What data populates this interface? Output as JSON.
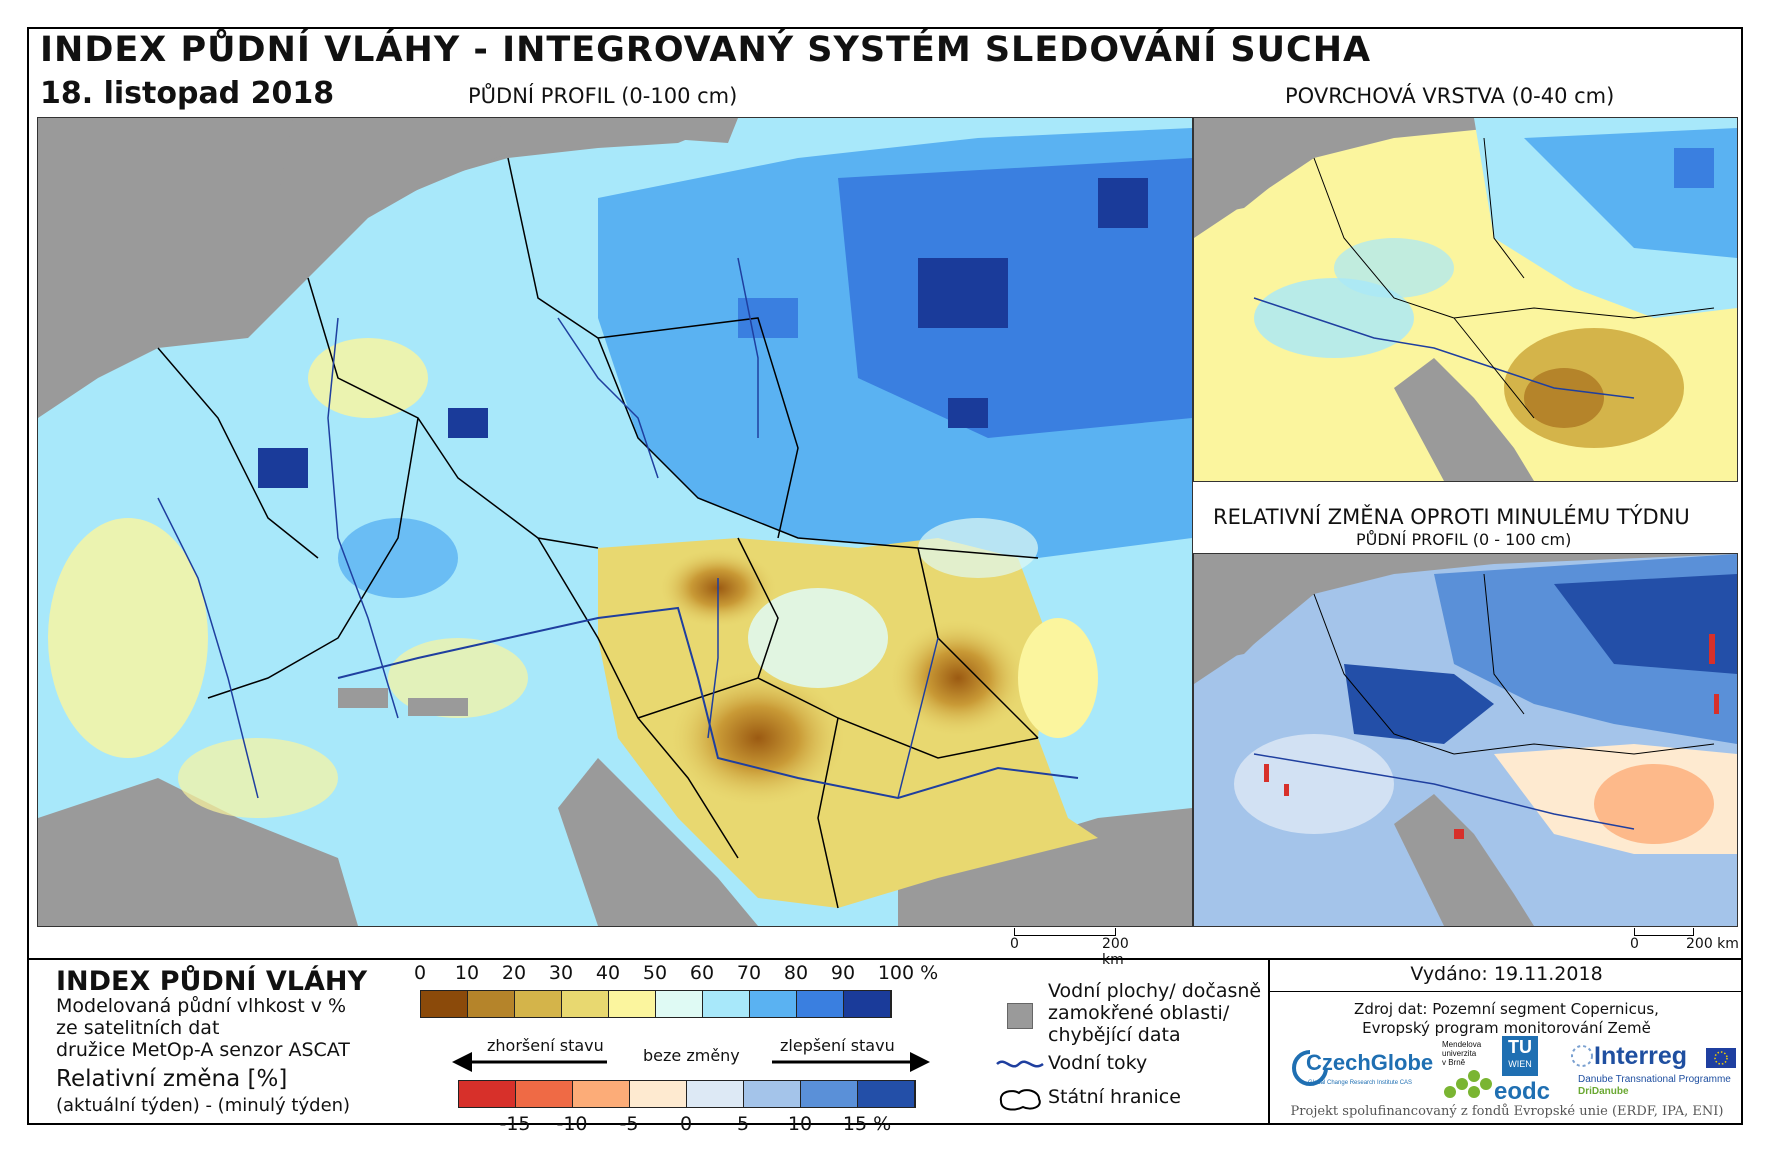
{
  "header": {
    "title": "INDEX PŮDNÍ VLÁHY - INTEGROVANÝ SYSTÉM SLEDOVÁNÍ SUCHA",
    "date": "18. listopad 2018"
  },
  "maps": {
    "main_label": "PŮDNÍ PROFIL (0-100 cm)",
    "surface_label": "POVRCHOVÁ VRSTVA (0-40 cm)",
    "change_label": "RELATIVNÍ ZMĚNA OPROTI MINULÉMU TÝDNU",
    "change_sublabel": "PŮDNÍ PROFIL (0 - 100 cm)",
    "scale_start": "0",
    "scale_end": "200 km",
    "scale_start_small": "0",
    "scale_end_small": "200 km"
  },
  "legend": {
    "title": "INDEX PŮDNÍ VLÁHY",
    "desc_line1": "Modelovaná půdní vlhkost v %",
    "desc_line2": "ze satelitních dat",
    "desc_line3": "družice MetOp-A senzor ASCAT",
    "rel_title": "Relativní změna [%]",
    "rel_note": "(aktuální týden) - (minulý týden)",
    "index_ticks": [
      "0",
      "10",
      "20",
      "30",
      "40",
      "50",
      "60",
      "70",
      "80",
      "90",
      "100 %"
    ],
    "index_colors": [
      "#8b4a0a",
      "#b5842a",
      "#d4b44a",
      "#e8d870",
      "#fbf59e",
      "#dffaf4",
      "#a8e8fa",
      "#5ab2f2",
      "#3a7fe0",
      "#1a3b9a"
    ],
    "change_ticks": [
      "-15",
      "-10",
      "-5",
      "0",
      "5",
      "10",
      "15 %"
    ],
    "change_colors": [
      "#d7302a",
      "#ef6a45",
      "#fcac78",
      "#feead0",
      "#dde9f5",
      "#a4c4ea",
      "#5a90d8",
      "#234fa8"
    ],
    "arrow_worse": "zhoršení stavu",
    "arrow_same": "beze změny",
    "arrow_better": "zlepšení stavu",
    "key_water_line1": "Vodní plochy/ dočasně",
    "key_water_line2": "zamokřené oblasti/",
    "key_water_line3": "chybějící data",
    "key_rivers": "Vodní toky",
    "key_borders": "Státní hranice"
  },
  "info": {
    "issued": "Vydáno: 19.11.2018",
    "source_line1": "Zdroj dat: Pozemní segment Copernicus,",
    "source_line2": "Evropský program monitorování Země",
    "footer": "Projekt spolufinancovaný z fondů Evropské unie (ERDF, IPA, ENI)"
  },
  "logos": {
    "czechglobe": "CzechGlobe",
    "czechglobe_sub": "Global Change Research Institute CAS",
    "mendel_line1": "Mendelova",
    "mendel_line2": "univerzita",
    "mendel_line3": "v Brně",
    "tu": "TU",
    "tu_sub": "WIEN",
    "eodc": "eodc",
    "interreg": "Interreg",
    "interreg_sub": "Danube Transnational Programme",
    "interreg_sub2": "DriDanube"
  },
  "colors": {
    "missing": "#9a9a9a",
    "river": "#1f3f9f",
    "border": "#000000"
  }
}
